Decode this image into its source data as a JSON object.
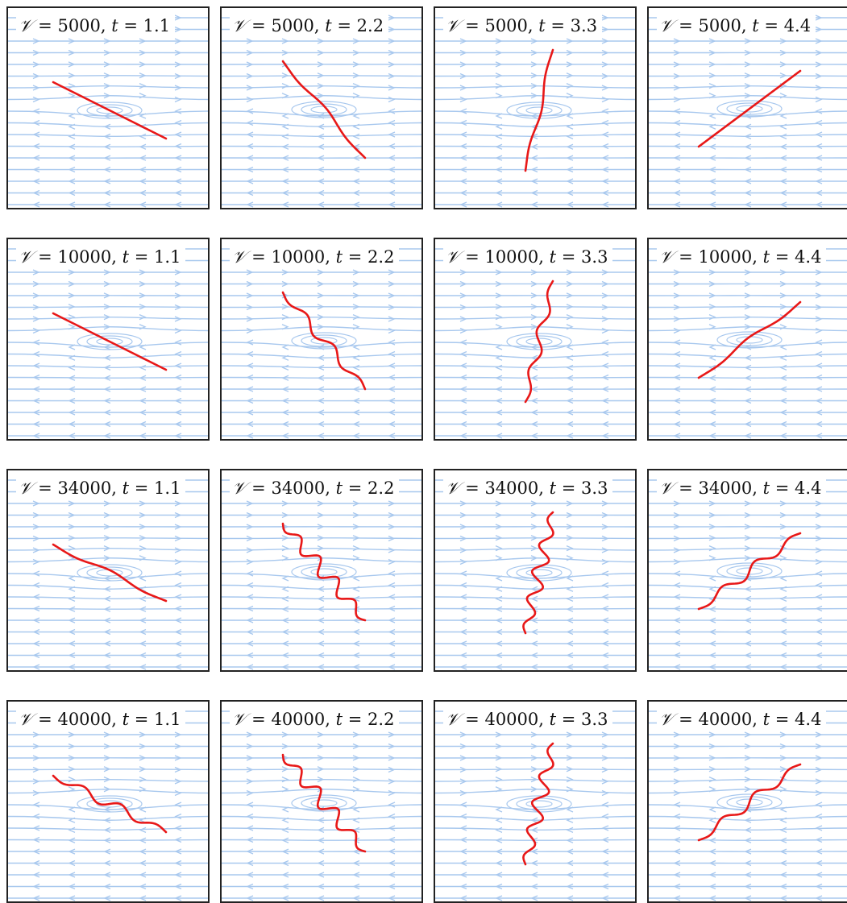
{
  "figure": {
    "columns": [
      "1.1",
      "2.2",
      "3.3",
      "4.4"
    ],
    "rows": [
      {
        "V": "5000",
        "panels": [
          {
            "V": "5000",
            "t": "1.1",
            "shape": "straight",
            "orientation": "descending"
          },
          {
            "V": "5000",
            "t": "2.2",
            "shape": "slight-wave",
            "orientation": "descending-steep"
          },
          {
            "V": "5000",
            "t": "3.3",
            "shape": "slight-wave",
            "orientation": "vertical"
          },
          {
            "V": "5000",
            "t": "4.4",
            "shape": "straight",
            "orientation": "ascending"
          }
        ]
      },
      {
        "V": "10000",
        "panels": [
          {
            "V": "10000",
            "t": "1.1",
            "shape": "straight",
            "orientation": "descending"
          },
          {
            "V": "10000",
            "t": "2.2",
            "shape": "wave",
            "orientation": "descending-steep"
          },
          {
            "V": "10000",
            "t": "3.3",
            "shape": "wave",
            "orientation": "vertical"
          },
          {
            "V": "10000",
            "t": "4.4",
            "shape": "slight-wave",
            "orientation": "ascending"
          }
        ]
      },
      {
        "V": "34000",
        "panels": [
          {
            "V": "34000",
            "t": "1.1",
            "shape": "slight-wave",
            "orientation": "descending"
          },
          {
            "V": "34000",
            "t": "2.2",
            "shape": "strong-wave",
            "orientation": "descending-steep"
          },
          {
            "V": "34000",
            "t": "3.3",
            "shape": "strong-wave",
            "orientation": "vertical"
          },
          {
            "V": "34000",
            "t": "4.4",
            "shape": "wave",
            "orientation": "ascending"
          }
        ]
      },
      {
        "V": "40000",
        "panels": [
          {
            "V": "40000",
            "t": "1.1",
            "shape": "wave",
            "orientation": "descending"
          },
          {
            "V": "40000",
            "t": "2.2",
            "shape": "strong-wave",
            "orientation": "descending-steep"
          },
          {
            "V": "40000",
            "t": "3.3",
            "shape": "strong-wave",
            "orientation": "vertical"
          },
          {
            "V": "40000",
            "t": "4.4",
            "shape": "wave",
            "orientation": "ascending"
          }
        ]
      }
    ],
    "colors": {
      "streamline": "#a8c8ee",
      "filament": "#e81818",
      "frame": "#222222",
      "background": "#ffffff"
    }
  }
}
